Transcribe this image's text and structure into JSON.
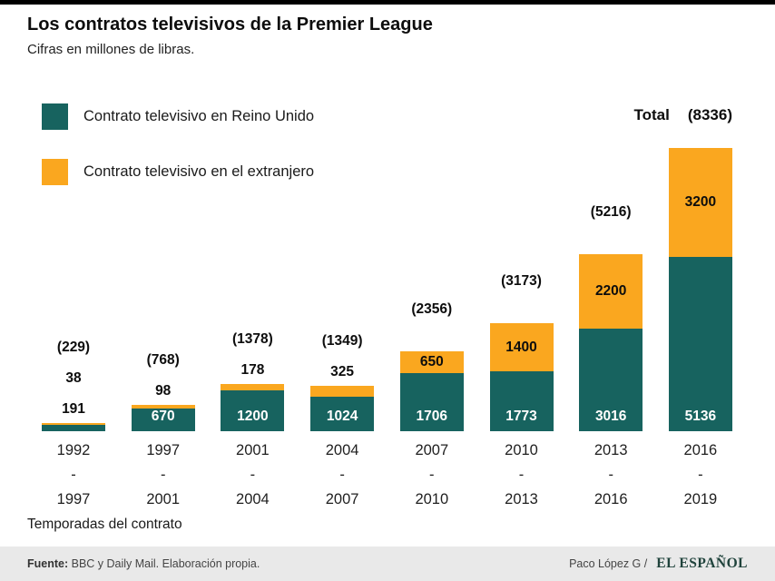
{
  "page": {
    "title": "Los contratos televisivos de la Premier League",
    "subtitle": "Cifras en millones de libras.",
    "x_axis_title": "Temporadas del contrato"
  },
  "legend": {
    "items": [
      {
        "label": "Contrato televisivo en Reino Unido",
        "color": "#17635f"
      },
      {
        "label": "Contrato televisivo en el extranjero",
        "color": "#faa71f"
      }
    ]
  },
  "total_header": {
    "label": "Total",
    "value": "(8336)"
  },
  "chart_data": {
    "type": "bar",
    "stacked": true,
    "title": "Los contratos televisivos de la Premier League",
    "unit": "millones de libras",
    "xlabel": "Temporadas del contrato",
    "ylim": [
      0,
      8500
    ],
    "grid": false,
    "legend_position": "top-left",
    "categories": [
      [
        "1992",
        "1997"
      ],
      [
        "1997",
        "2001"
      ],
      [
        "2001",
        "2004"
      ],
      [
        "2004",
        "2007"
      ],
      [
        "2007",
        "2010"
      ],
      [
        "2010",
        "2013"
      ],
      [
        "2013",
        "2016"
      ],
      [
        "2016",
        "2019"
      ]
    ],
    "category_separator": "-",
    "series": [
      {
        "name": "Contrato televisivo en Reino Unido",
        "color": "#17635f",
        "values": [
          191,
          670,
          1200,
          1024,
          1706,
          1773,
          3016,
          5136
        ]
      },
      {
        "name": "Contrato televisivo en el extranjero",
        "color": "#faa71f",
        "values": [
          38,
          98,
          178,
          325,
          650,
          1400,
          2200,
          3200
        ]
      }
    ],
    "totals": [
      229,
      768,
      1378,
      1349,
      2356,
      3173,
      5216,
      8336
    ],
    "totals_display": [
      "(229)",
      "(768)",
      "(1378)",
      "(1349)",
      "(2356)",
      "(3173)",
      "(5216)",
      "(8336)"
    ]
  },
  "footer": {
    "source_label": "Fuente:",
    "source_text": " BBC y Daily Mail. Elaboración propia.",
    "credit": "Paco López G /",
    "brand": "EL ESPAÑOL"
  }
}
